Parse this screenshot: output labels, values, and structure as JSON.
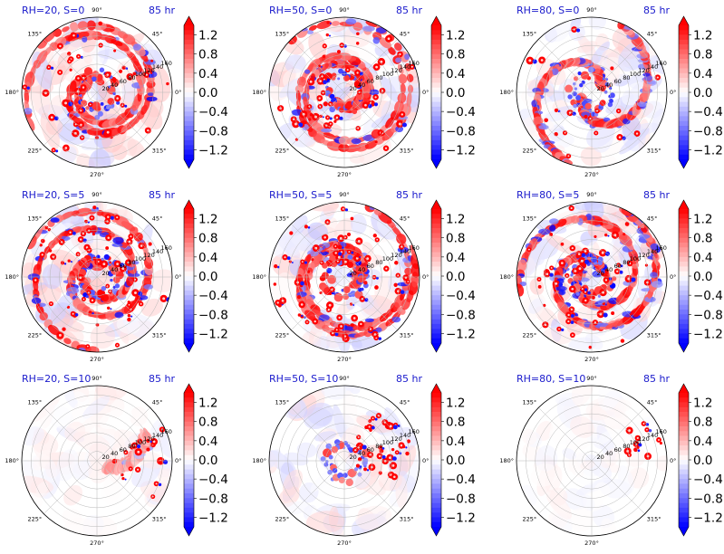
{
  "chart_data": {
    "type": "heatmap",
    "projection": "polar",
    "layout": "3x3 grid",
    "colormap": "bwr",
    "colorbar_extend": "both",
    "shared": {
      "time_label": "85 hr",
      "angle_ticks": [
        "0°",
        "45°",
        "90°",
        "135°",
        "180°",
        "225°",
        "270°",
        "315°"
      ],
      "radial_ticks": [
        "20",
        "40",
        "60",
        "80",
        "100",
        "120",
        "140",
        "160"
      ],
      "radial_range": [
        0,
        160
      ],
      "grid": true
    },
    "colorbar": {
      "ticks": [
        "1.2",
        "0.8",
        "0.4",
        "0.0",
        "−0.4",
        "−0.8",
        "−1.2"
      ],
      "range": [
        -1.4,
        1.4
      ]
    },
    "panels": [
      {
        "title": "RH=20, S=0",
        "time_label": "85 hr"
      },
      {
        "title": "RH=50, S=0",
        "time_label": "85 hr"
      },
      {
        "title": "RH=80, S=0",
        "time_label": "85 hr"
      },
      {
        "title": "RH=20, S=5",
        "time_label": "85 hr"
      },
      {
        "title": "RH=50, S=5",
        "time_label": "85 hr"
      },
      {
        "title": "RH=80, S=5",
        "time_label": "85 hr"
      },
      {
        "title": "RH=20, S=10",
        "time_label": "85 hr"
      },
      {
        "title": "RH=50, S=10",
        "time_label": "85 hr"
      },
      {
        "title": "RH=80, S=10",
        "time_label": "85 hr"
      }
    ]
  }
}
